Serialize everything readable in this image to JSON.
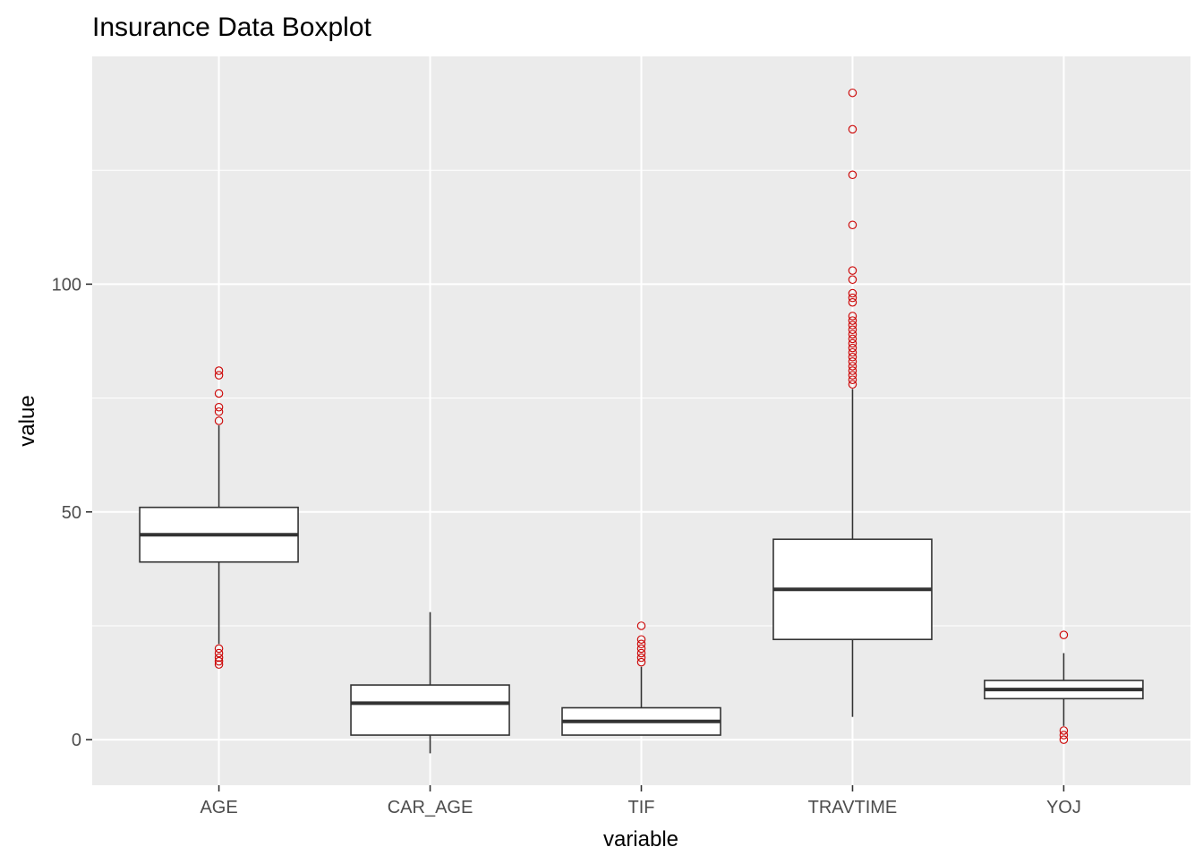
{
  "chart_data": {
    "type": "boxplot",
    "title": "Insurance Data Boxplot",
    "xlabel": "variable",
    "ylabel": "value",
    "ylim": [
      -10,
      150
    ],
    "y_ticks": [
      0,
      50,
      100
    ],
    "grid": true,
    "colors": {
      "panel_background": "#ebebeb",
      "grid": "#ffffff",
      "box_fill": "#ffffff",
      "box_line": "#333333",
      "outlier": "#cc0000",
      "tick_label": "#4d4d4d"
    },
    "categories": [
      "AGE",
      "CAR_AGE",
      "TIF",
      "TRAVTIME",
      "YOJ"
    ],
    "boxes": [
      {
        "category": "AGE",
        "q1": 39,
        "median": 45,
        "q3": 51,
        "whisker_low": 21,
        "whisker_high": 69,
        "outliers": [
          16.5,
          17.2,
          18.0,
          19.0,
          20.0,
          70,
          72,
          73,
          76,
          80,
          81
        ]
      },
      {
        "category": "CAR_AGE",
        "q1": 1,
        "median": 8,
        "q3": 12,
        "whisker_low": -3,
        "whisker_high": 28,
        "outliers": []
      },
      {
        "category": "TIF",
        "q1": 1,
        "median": 4,
        "q3": 7,
        "whisker_low": 1,
        "whisker_high": 16,
        "outliers": [
          17,
          18,
          19,
          20,
          21,
          22,
          25
        ]
      },
      {
        "category": "TRAVTIME",
        "q1": 22,
        "median": 33,
        "q3": 44,
        "whisker_low": 5,
        "whisker_high": 77,
        "outliers": [
          78,
          79,
          80,
          81,
          82,
          83,
          84,
          85,
          86,
          87,
          88,
          89,
          90,
          91,
          92,
          93,
          96,
          97,
          98,
          101,
          103,
          113,
          124,
          134,
          142
        ]
      },
      {
        "category": "YOJ",
        "q1": 9,
        "median": 11,
        "q3": 13,
        "whisker_low": 3,
        "whisker_high": 19,
        "outliers": [
          0,
          1,
          2,
          23
        ]
      }
    ]
  }
}
